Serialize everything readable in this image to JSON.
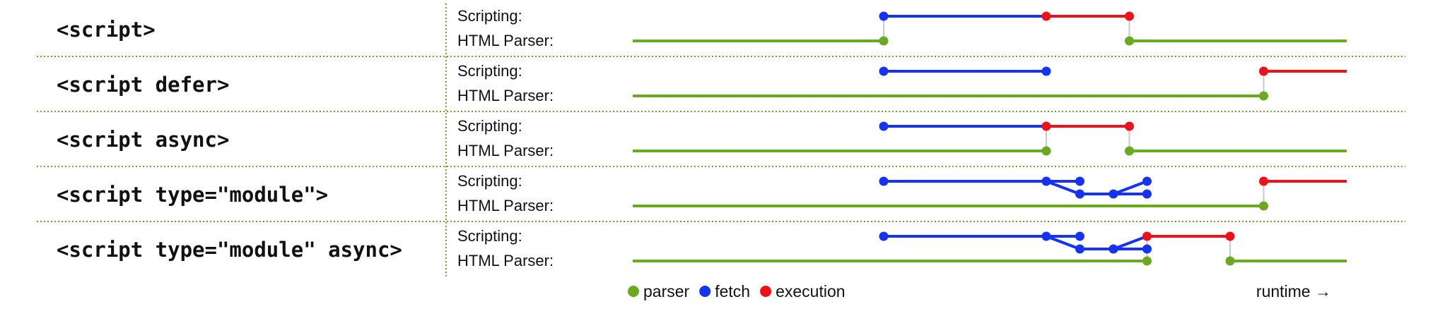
{
  "colors": {
    "parser": "#6aaa1e",
    "fetch": "#1533f5",
    "execution": "#f01018",
    "connector": "#c8c8c8",
    "separator": "#6aaa1e"
  },
  "track_labels": {
    "scripting": "Scripting:",
    "parser": "HTML Parser:"
  },
  "rows": [
    {
      "tag": "<script>",
      "scripting": [
        {
          "kind": "fetch",
          "points": [
            [
              0,
              0
            ],
            [
              46,
              0
            ]
          ]
        },
        {
          "kind": "execution",
          "points": [
            [
              46,
              0
            ],
            [
              69.5,
              0
            ]
          ]
        }
      ],
      "parser": [
        {
          "kind": "parser",
          "points": [
            [
              -71,
              0
            ],
            [
              0,
              0
            ]
          ]
        },
        {
          "kind": "parser",
          "points": [
            [
              69.5,
              0
            ],
            [
              131,
              0
            ]
          ]
        }
      ],
      "dots": [
        {
          "kind": "fetch",
          "track": "scripting",
          "t": 0
        },
        {
          "kind": "execution",
          "track": "scripting",
          "t": 46
        },
        {
          "kind": "execution",
          "track": "scripting",
          "t": 69.5
        },
        {
          "kind": "parser",
          "track": "parser",
          "t": 0
        },
        {
          "kind": "parser",
          "track": "parser",
          "t": 69.5
        }
      ],
      "connectors": [
        0,
        69.5
      ]
    },
    {
      "tag": "<script defer>",
      "scripting": [
        {
          "kind": "fetch",
          "points": [
            [
              0,
              0
            ],
            [
              46,
              0
            ]
          ]
        },
        {
          "kind": "execution",
          "points": [
            [
              107.5,
              0
            ],
            [
              131,
              0
            ]
          ]
        }
      ],
      "parser": [
        {
          "kind": "parser",
          "points": [
            [
              -71,
              0
            ],
            [
              107.5,
              0
            ]
          ]
        }
      ],
      "dots": [
        {
          "kind": "fetch",
          "track": "scripting",
          "t": 0
        },
        {
          "kind": "fetch",
          "track": "scripting",
          "t": 46
        },
        {
          "kind": "execution",
          "track": "scripting",
          "t": 107.5
        },
        {
          "kind": "parser",
          "track": "parser",
          "t": 107.5
        }
      ],
      "connectors": [
        107.5
      ]
    },
    {
      "tag": "<script async>",
      "scripting": [
        {
          "kind": "fetch",
          "points": [
            [
              0,
              0
            ],
            [
              46,
              0
            ]
          ]
        },
        {
          "kind": "execution",
          "points": [
            [
              46,
              0
            ],
            [
              69.5,
              0
            ]
          ]
        }
      ],
      "parser": [
        {
          "kind": "parser",
          "points": [
            [
              -71,
              0
            ],
            [
              46,
              0
            ]
          ]
        },
        {
          "kind": "parser",
          "points": [
            [
              69.5,
              0
            ],
            [
              131,
              0
            ]
          ]
        }
      ],
      "dots": [
        {
          "kind": "fetch",
          "track": "scripting",
          "t": 0
        },
        {
          "kind": "execution",
          "track": "scripting",
          "t": 46
        },
        {
          "kind": "execution",
          "track": "scripting",
          "t": 69.5
        },
        {
          "kind": "parser",
          "track": "parser",
          "t": 46
        },
        {
          "kind": "parser",
          "track": "parser",
          "t": 69.5
        }
      ],
      "connectors": [
        46,
        69.5
      ]
    },
    {
      "tag": "<script type=\"module\">",
      "scripting": [
        {
          "kind": "fetch",
          "points": [
            [
              0,
              0
            ],
            [
              46,
              0
            ],
            [
              55.5,
              0
            ]
          ]
        },
        {
          "kind": "fetch",
          "points": [
            [
              46,
              0
            ],
            [
              55.5,
              1
            ],
            [
              65,
              1
            ],
            [
              74.5,
              0
            ]
          ]
        },
        {
          "kind": "fetch",
          "points": [
            [
              55.5,
              1
            ],
            [
              74.5,
              1
            ]
          ]
        },
        {
          "kind": "execution",
          "points": [
            [
              107.5,
              0
            ],
            [
              131,
              0
            ]
          ]
        }
      ],
      "parser": [
        {
          "kind": "parser",
          "points": [
            [
              -71,
              0
            ],
            [
              107.5,
              0
            ]
          ]
        }
      ],
      "dots": [
        {
          "kind": "fetch",
          "track": "scripting",
          "t": 0
        },
        {
          "kind": "fetch",
          "track": "scripting",
          "t": 46
        },
        {
          "kind": "fetch",
          "track": "scripting",
          "t": 55.5
        },
        {
          "kind": "fetch",
          "track": "scripting",
          "t": 55.5,
          "sub": 1
        },
        {
          "kind": "fetch",
          "track": "scripting",
          "t": 65,
          "sub": 1
        },
        {
          "kind": "fetch",
          "track": "scripting",
          "t": 74.5
        },
        {
          "kind": "fetch",
          "track": "scripting",
          "t": 74.5,
          "sub": 1
        },
        {
          "kind": "execution",
          "track": "scripting",
          "t": 107.5
        },
        {
          "kind": "parser",
          "track": "parser",
          "t": 107.5
        }
      ],
      "connectors": [
        107.5
      ]
    },
    {
      "tag": "<script type=\"module\" async>",
      "scripting": [
        {
          "kind": "fetch",
          "points": [
            [
              0,
              0
            ],
            [
              46,
              0
            ],
            [
              55.5,
              0
            ]
          ]
        },
        {
          "kind": "fetch",
          "points": [
            [
              46,
              0
            ],
            [
              55.5,
              1
            ],
            [
              65,
              1
            ],
            [
              74.5,
              0
            ]
          ]
        },
        {
          "kind": "fetch",
          "points": [
            [
              55.5,
              1
            ],
            [
              74.5,
              1
            ]
          ]
        },
        {
          "kind": "execution",
          "points": [
            [
              74.5,
              0
            ],
            [
              98,
              0
            ]
          ]
        }
      ],
      "parser": [
        {
          "kind": "parser",
          "points": [
            [
              -71,
              0
            ],
            [
              74.5,
              0
            ]
          ]
        },
        {
          "kind": "parser",
          "points": [
            [
              98,
              0
            ],
            [
              131,
              0
            ]
          ]
        }
      ],
      "dots": [
        {
          "kind": "fetch",
          "track": "scripting",
          "t": 0
        },
        {
          "kind": "fetch",
          "track": "scripting",
          "t": 46
        },
        {
          "kind": "fetch",
          "track": "scripting",
          "t": 55.5
        },
        {
          "kind": "fetch",
          "track": "scripting",
          "t": 55.5,
          "sub": 1
        },
        {
          "kind": "fetch",
          "track": "scripting",
          "t": 65,
          "sub": 1
        },
        {
          "kind": "execution",
          "track": "scripting",
          "t": 74.5
        },
        {
          "kind": "fetch",
          "track": "scripting",
          "t": 74.5,
          "sub": 1
        },
        {
          "kind": "execution",
          "track": "scripting",
          "t": 98
        },
        {
          "kind": "parser",
          "track": "parser",
          "t": 74.5
        },
        {
          "kind": "parser",
          "track": "parser",
          "t": 98
        }
      ],
      "connectors": [
        74.5,
        98
      ]
    }
  ],
  "legend": {
    "items": [
      {
        "kind": "parser",
        "label": "parser"
      },
      {
        "kind": "fetch",
        "label": "fetch"
      },
      {
        "kind": "execution",
        "label": "execution"
      }
    ],
    "axis_label": "runtime →"
  }
}
